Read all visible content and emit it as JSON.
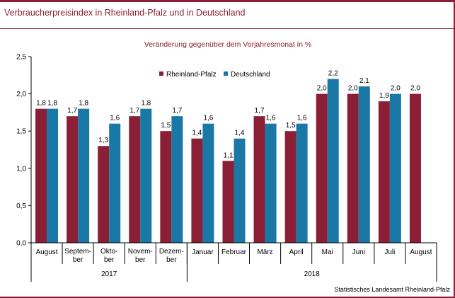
{
  "page_title": "Verbraucherpreisindex in Rheinland-Pfalz und in Deutschland",
  "source": "Statistisches Landesamt Rheinland-Pfalz",
  "colors": {
    "brand": "#8b1f35",
    "rlp": "#8b1f35",
    "de": "#1a78a7"
  },
  "chart_data": {
    "type": "bar",
    "subtitle": "Veränderung gegenüber dem Vorjahresmonat in %",
    "categories": [
      [
        "August"
      ],
      [
        "Septem-",
        "ber"
      ],
      [
        "Okto-",
        "ber"
      ],
      [
        "Novem-",
        "ber"
      ],
      [
        "Dezem-",
        "ber"
      ],
      [
        "Januar"
      ],
      [
        "Februar"
      ],
      [
        "März"
      ],
      [
        "April"
      ],
      [
        "Mai"
      ],
      [
        "Juni"
      ],
      [
        "Juli"
      ],
      [
        "August"
      ]
    ],
    "years": [
      {
        "label": "2017",
        "from": 0,
        "to": 4
      },
      {
        "label": "2018",
        "from": 5,
        "to": 12
      }
    ],
    "series": [
      {
        "name": "Rheinland-Pfalz",
        "color": "#8b1f35",
        "values": [
          1.8,
          1.7,
          1.3,
          1.7,
          1.5,
          1.4,
          1.1,
          1.7,
          1.5,
          2.0,
          2.0,
          1.9,
          2.0
        ],
        "labels": [
          "1,8",
          "1,7",
          "1,3",
          "1,7",
          "1,5",
          "1,4",
          "1,1",
          "1,7",
          "1,5",
          "2,0",
          "2,0",
          "1,9",
          "2,0"
        ]
      },
      {
        "name": "Deutschland",
        "color": "#1a78a7",
        "values": [
          1.8,
          1.8,
          1.6,
          1.8,
          1.7,
          1.6,
          1.4,
          1.6,
          1.6,
          2.2,
          2.1,
          2.0,
          null
        ],
        "labels": [
          "1,8",
          "1,8",
          "1,6",
          "1,8",
          "1,7",
          "1,6",
          "1,4",
          "1,6",
          "1,6",
          "2,2",
          "2,1",
          "2,0",
          ""
        ]
      }
    ],
    "yticks": [
      0,
      0.5,
      1.0,
      1.5,
      2.0,
      2.5
    ],
    "ytick_labels": [
      "0,0",
      "0,5",
      "1,0",
      "1,5",
      "2,0",
      "2,5"
    ],
    "ylim": [
      0,
      2.5
    ],
    "legend_position": "top-left",
    "grid": false
  }
}
